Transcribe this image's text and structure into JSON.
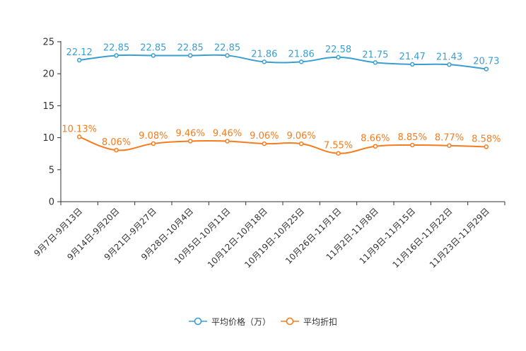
{
  "chart_data": {
    "type": "line",
    "title": "",
    "xlabel": "",
    "ylabel": "",
    "ylim": [
      0,
      25
    ],
    "yticks": [
      0,
      5,
      10,
      15,
      20,
      25
    ],
    "grid": false,
    "legend_position": "bottom",
    "categories": [
      "9月7日-9月13日",
      "9月14日-9月20日",
      "9月21日-9月27日",
      "9月28日-10月4日",
      "10月5日-10月11日",
      "10月12日-10月18日",
      "10月19日-10月25日",
      "10月26日-11月1日",
      "11月2日-11月8日",
      "11月9日-11月15日",
      "11月16日-11月22日",
      "11月23日-11月29日"
    ],
    "series": [
      {
        "name": "平均价格（万）",
        "color": "#3a9fd0",
        "values": [
          22.12,
          22.85,
          22.85,
          22.85,
          22.85,
          21.86,
          21.86,
          22.58,
          21.75,
          21.47,
          21.43,
          20.73
        ],
        "labels": [
          "22.12",
          "22.85",
          "22.85",
          "22.85",
          "22.85",
          "21.86",
          "21.86",
          "22.58",
          "21.75",
          "21.47",
          "21.43",
          "20.73"
        ]
      },
      {
        "name": "平均折扣",
        "color": "#f57c1f",
        "values": [
          10.13,
          8.06,
          9.08,
          9.46,
          9.46,
          9.06,
          9.06,
          7.55,
          8.66,
          8.85,
          8.77,
          8.58
        ],
        "labels": [
          "10.13%",
          "8.06%",
          "9.08%",
          "9.46%",
          "9.46%",
          "9.06%",
          "9.06%",
          "7.55%",
          "8.66%",
          "8.85%",
          "8.77%",
          "8.58%"
        ]
      }
    ]
  }
}
